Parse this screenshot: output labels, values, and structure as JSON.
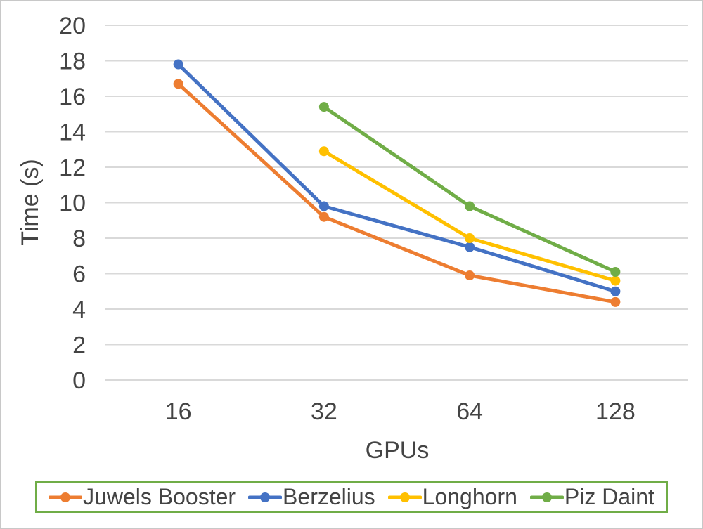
{
  "chart_data": {
    "type": "line",
    "title": "",
    "xlabel": "GPUs",
    "ylabel": "Time (s)",
    "categories": [
      "16",
      "32",
      "64",
      "128"
    ],
    "series": [
      {
        "name": "Juwels Booster",
        "color": "#ED7D31",
        "values": [
          16.7,
          9.2,
          5.9,
          4.4
        ]
      },
      {
        "name": "Berzelius",
        "color": "#4472C4",
        "values": [
          17.8,
          9.8,
          7.5,
          5.0
        ]
      },
      {
        "name": "Longhorn",
        "color": "#FFC000",
        "values": [
          null,
          12.9,
          8.0,
          5.6
        ]
      },
      {
        "name": "Piz Daint",
        "color": "#70AD47",
        "values": [
          null,
          15.4,
          9.8,
          6.1
        ]
      }
    ],
    "ylim": [
      0,
      20
    ],
    "ytick_step": 2,
    "grid": true,
    "legend_position": "bottom",
    "legend_border_color": "#70AD47",
    "gridline_color": "#D9D9D9",
    "text_color": "#444444"
  }
}
